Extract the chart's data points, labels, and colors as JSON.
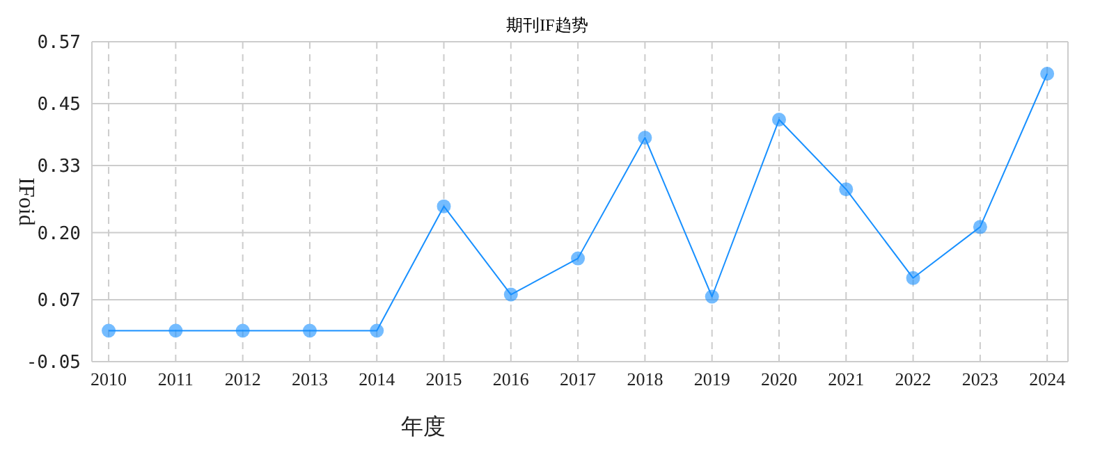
{
  "chart_data": {
    "type": "line",
    "title": "期刊IF趋势",
    "xlabel": "年度",
    "ylabel": "IFoid",
    "categories": [
      "2010",
      "2011",
      "2012",
      "2013",
      "2014",
      "2015",
      "2016",
      "2017",
      "2018",
      "2019",
      "2020",
      "2021",
      "2022",
      "2023",
      "2024"
    ],
    "series": [
      {
        "color": "#1890ff",
        "values": [
          0.01,
          0.01,
          0.01,
          0.01,
          0.01,
          0.251,
          0.08,
          0.15,
          0.384,
          0.076,
          0.419,
          0.284,
          0.112,
          0.211,
          0.508
        ]
      }
    ],
    "ylim": [
      -0.05,
      0.57
    ],
    "yticks": [
      -0.05,
      0.07,
      {
        "value": 0.2,
        "label": "0.20"
      },
      0.33,
      0.45,
      0.57
    ],
    "grid": true,
    "marker": "circle",
    "line_style": "solid"
  }
}
